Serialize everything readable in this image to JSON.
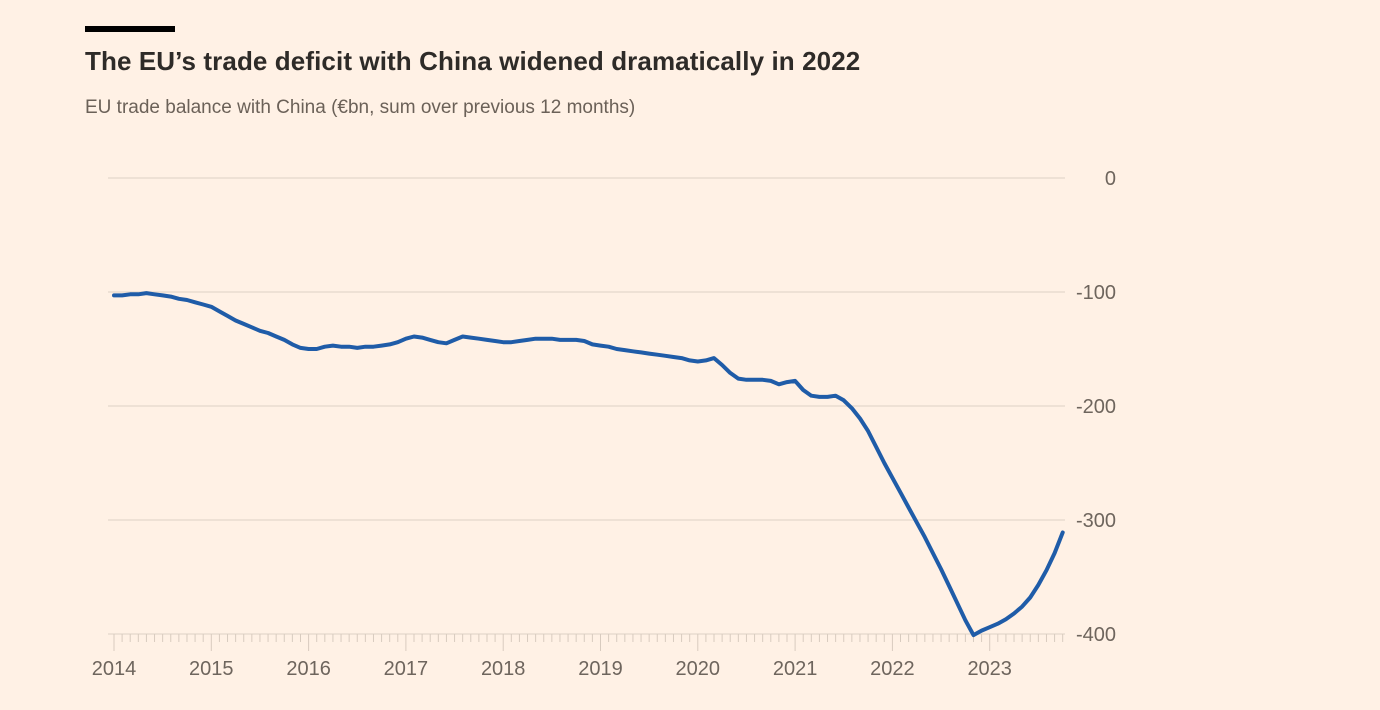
{
  "header": {
    "title": "The EU’s trade deficit with China widened dramatically in 2022",
    "subtitle": "EU trade balance with China (€bn, sum over previous 12 months)"
  },
  "colors": {
    "background": "#FFF1E5",
    "headline_bar": "#000000",
    "title_text": "#2E2B28",
    "muted_text": "#6B6158",
    "gridline": "#E8DCD0",
    "tick": "#D8CBBF",
    "line": "#1F5CA8"
  },
  "chart_data": {
    "type": "line",
    "title": "The EU’s trade deficit with China widened dramatically in 2022",
    "subtitle": "EU trade balance with China (€bn, sum over previous 12 months)",
    "unit": "€bn",
    "grid": "horizontal-only",
    "y_axis_position": "right",
    "ylim": [
      -400,
      0
    ],
    "y_ticks": [
      0,
      -100,
      -200,
      -300,
      -400
    ],
    "y_tick_labels": [
      "0",
      "-100",
      "-200",
      "-300",
      "-400"
    ],
    "x_tick_years": [
      "2014",
      "2015",
      "2016",
      "2017",
      "2018",
      "2019",
      "2020",
      "2021",
      "2022",
      "2023"
    ],
    "x_monthly_start": "2014-01",
    "x_monthly_end": "2023-10",
    "series": [
      {
        "name": "EU trade balance with China",
        "values": [
          -103,
          -103,
          -102,
          -102,
          -101,
          -102,
          -103,
          -104,
          -106,
          -107,
          -109,
          -111,
          -113,
          -117,
          -121,
          -125,
          -128,
          -131,
          -134,
          -136,
          -139,
          -142,
          -146,
          -149,
          -150,
          -150,
          -148,
          -147,
          -148,
          -148,
          -149,
          -148,
          -148,
          -147,
          -146,
          -144,
          -141,
          -139,
          -140,
          -142,
          -144,
          -145,
          -142,
          -139,
          -140,
          -141,
          -142,
          -143,
          -144,
          -144,
          -143,
          -142,
          -141,
          -141,
          -141,
          -142,
          -142,
          -142,
          -143,
          -146,
          -147,
          -148,
          -150,
          -151,
          -152,
          -153,
          -154,
          -155,
          -156,
          -157,
          -158,
          -160,
          -161,
          -160,
          -158,
          -164,
          -171,
          -176,
          -177,
          -177,
          -177,
          -178,
          -181,
          -179,
          -178,
          -186,
          -191,
          -192,
          -192,
          -191,
          -195,
          -202,
          -211,
          -222,
          -236,
          -250,
          -263,
          -276,
          -289,
          -302,
          -315,
          -329,
          -343,
          -358,
          -373,
          -388,
          -401,
          -397,
          -394,
          -391,
          -387,
          -382,
          -376,
          -368,
          -357,
          -344,
          -329,
          -311
        ]
      }
    ]
  }
}
